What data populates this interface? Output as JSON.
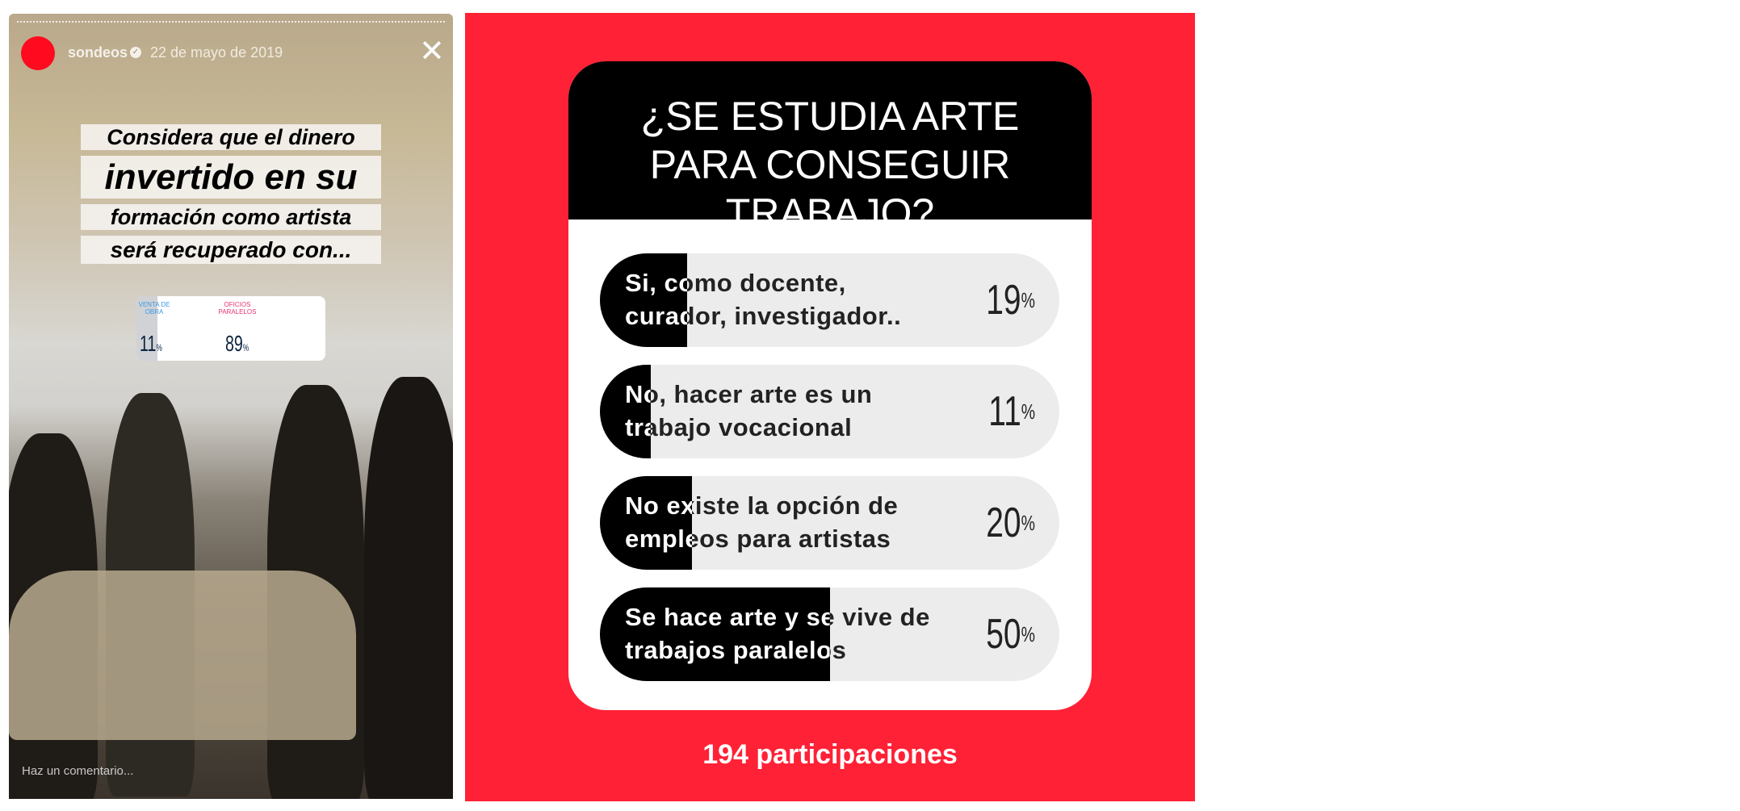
{
  "story": {
    "username": "sondeos",
    "date": "22 de mayo de 2019",
    "question_lines": [
      "Considera  que el dinero",
      "invertido en su",
      "formación como artista",
      "será recuperado con..."
    ],
    "sticker": {
      "options": [
        {
          "label": "VENTA DE OBRA",
          "percent": 11,
          "color": "#3b9ae1"
        },
        {
          "label": "OFICIOS PARALELOS",
          "percent": 89,
          "color": "#e8336e"
        }
      ]
    },
    "comment_placeholder": "Haz un comentario..."
  },
  "poll": {
    "background": "#ff2135",
    "title": "¿SE ESTUDIA ARTE PARA CONSEGUIR TRABAJO?",
    "options": [
      {
        "label": "Si, como docente, curador, investigador..",
        "percent": 19
      },
      {
        "label": "No, hacer arte es un trabajo vocacional",
        "percent": 11
      },
      {
        "label": "No existe la opción de empleos para artistas",
        "percent": 20
      },
      {
        "label": "Se hace arte y se vive de trabajos paralelos",
        "percent": 50
      }
    ],
    "participants": "194 participaciones"
  }
}
